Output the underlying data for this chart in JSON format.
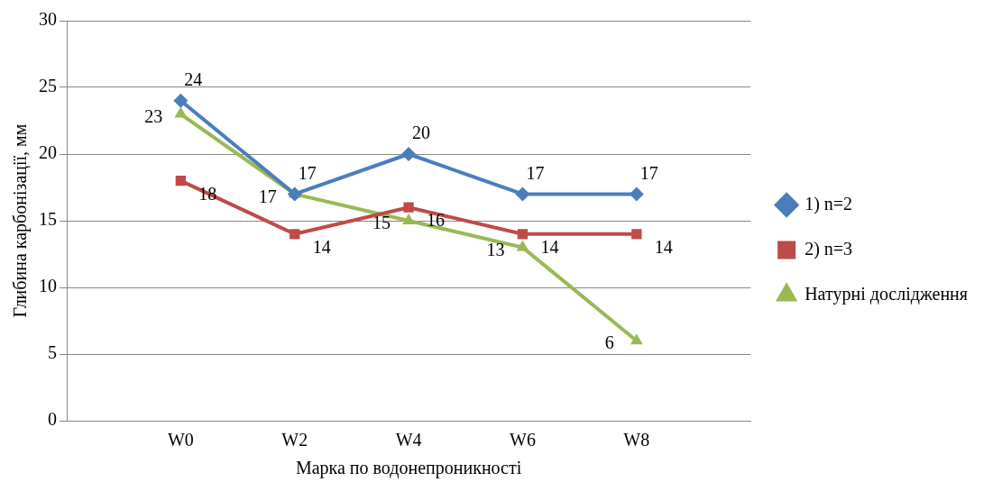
{
  "chart_data": {
    "type": "line",
    "xlabel": "Марка по водонепроникності",
    "ylabel": "Глибина карбонізації, мм",
    "categories": [
      null,
      "W0",
      "W2",
      "W4",
      "W6",
      "W8",
      null
    ],
    "series": [
      {
        "name": "1) n=2",
        "color": "#4a7ebb",
        "marker": "diamond",
        "values": [
          null,
          24,
          17,
          20,
          17,
          17,
          null
        ]
      },
      {
        "name": "2) n=3",
        "color": "#be4b48",
        "marker": "square",
        "values": [
          null,
          18,
          14,
          16,
          14,
          14,
          null
        ]
      },
      {
        "name": "Натурні дослідження",
        "color": "#98b954",
        "marker": "triangle",
        "values": [
          null,
          23,
          17,
          15,
          13,
          6,
          null
        ]
      }
    ],
    "ylim": [
      0,
      30
    ],
    "yticks": [
      0,
      5,
      10,
      15,
      20,
      25,
      30
    ],
    "grid": "y",
    "legend": "right",
    "data_labels": true
  }
}
